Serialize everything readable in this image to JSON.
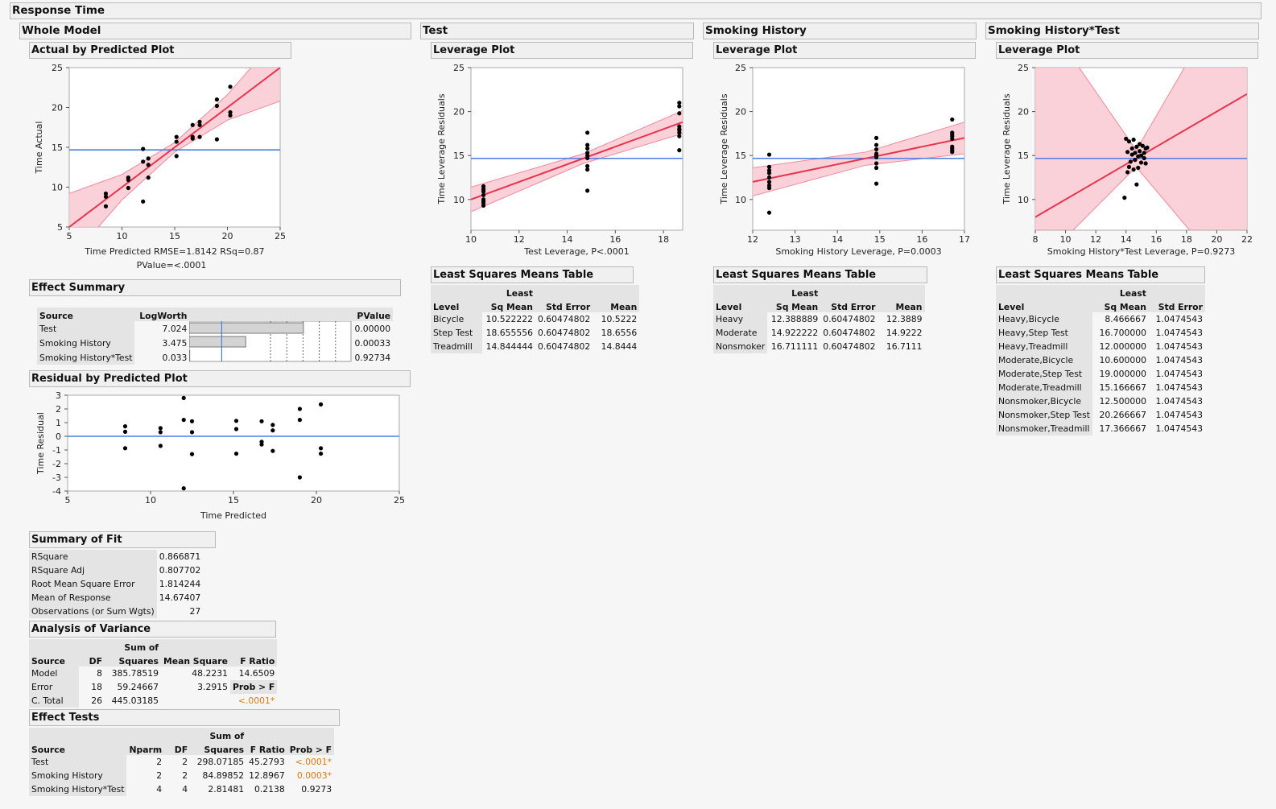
{
  "title": "Response Time",
  "sections": {
    "whole_model": "Whole Model",
    "test": "Test",
    "smoking_history": "Smoking History",
    "interaction": "Smoking History*Test"
  },
  "subheaders": {
    "actual_by_predicted": "Actual by Predicted Plot",
    "leverage_plot": "Leverage Plot",
    "effect_summary": "Effect Summary",
    "residual_by_predicted": "Residual by Predicted Plot",
    "summary_of_fit": "Summary of Fit",
    "analysis_of_variance": "Analysis of Variance",
    "effect_tests": "Effect Tests",
    "lsm_table": "Least Squares Means Table"
  },
  "colors": {
    "fit_line": "#e8344e",
    "band": "#f9c9d1",
    "mean_line": "#4a7fe0",
    "points": "#000000",
    "significant": "#e07a10"
  },
  "chart_data": [
    {
      "id": "actual_by_predicted",
      "type": "scatter",
      "xlabel": "Time Predicted RMSE=1.8142 RSq=0.87",
      "xlabel2": "PValue=<.0001",
      "ylabel": "Time Actual",
      "xlim": [
        5,
        25
      ],
      "ylim": [
        5,
        25
      ],
      "xticks": [
        5,
        10,
        15,
        20,
        25
      ],
      "yticks": [
        5,
        10,
        15,
        20,
        25
      ],
      "mean": 14.674,
      "fit": [
        [
          5,
          5
        ],
        [
          25,
          25
        ]
      ],
      "band": [
        [
          5,
          9.2,
          0.8
        ],
        [
          10,
          11.6,
          8.4
        ],
        [
          15,
          15.6,
          14.4
        ],
        [
          20,
          21.6,
          18.4
        ],
        [
          25,
          29.2,
          20.8
        ]
      ],
      "points": [
        [
          8.47,
          9.2
        ],
        [
          8.47,
          8.8
        ],
        [
          8.47,
          7.6
        ],
        [
          10.6,
          11.2
        ],
        [
          10.6,
          10.9
        ],
        [
          10.6,
          9.9
        ],
        [
          12.0,
          14.8
        ],
        [
          12.0,
          13.2
        ],
        [
          12.0,
          8.2
        ],
        [
          12.5,
          13.6
        ],
        [
          12.5,
          12.8
        ],
        [
          12.5,
          11.2
        ],
        [
          15.17,
          16.3
        ],
        [
          15.17,
          15.7
        ],
        [
          15.17,
          13.9
        ],
        [
          16.7,
          17.8
        ],
        [
          16.7,
          16.3
        ],
        [
          16.7,
          16.1
        ],
        [
          17.37,
          18.2
        ],
        [
          17.37,
          17.8
        ],
        [
          17.37,
          16.3
        ],
        [
          19.0,
          21.0
        ],
        [
          19.0,
          20.2
        ],
        [
          19.0,
          16.0
        ],
        [
          20.27,
          22.6
        ],
        [
          20.27,
          19.4
        ],
        [
          20.27,
          19.0
        ]
      ]
    },
    {
      "id": "residual_by_predicted",
      "type": "scatter",
      "xlabel": "Time Predicted",
      "ylabel": "Time Residual",
      "xlim": [
        5,
        25
      ],
      "ylim": [
        -4,
        3
      ],
      "xticks": [
        5,
        10,
        15,
        20,
        25
      ],
      "yticks": [
        3,
        2,
        1,
        0,
        -1,
        -2,
        -3,
        -4
      ],
      "mean": 0,
      "points": [
        [
          8.47,
          0.73
        ],
        [
          8.47,
          0.33
        ],
        [
          8.47,
          -0.87
        ],
        [
          10.6,
          0.6
        ],
        [
          10.6,
          0.3
        ],
        [
          10.6,
          -0.7
        ],
        [
          12.0,
          2.8
        ],
        [
          12.0,
          1.2
        ],
        [
          12.0,
          -3.8
        ],
        [
          12.5,
          1.1
        ],
        [
          12.5,
          0.3
        ],
        [
          12.5,
          -1.3
        ],
        [
          15.17,
          1.13
        ],
        [
          15.17,
          0.53
        ],
        [
          15.17,
          -1.27
        ],
        [
          16.7,
          1.1
        ],
        [
          16.7,
          -0.4
        ],
        [
          16.7,
          -0.6
        ],
        [
          17.37,
          0.83
        ],
        [
          17.37,
          0.43
        ],
        [
          17.37,
          -1.07
        ],
        [
          19.0,
          2.0
        ],
        [
          19.0,
          1.2
        ],
        [
          19.0,
          -3.0
        ],
        [
          20.27,
          2.33
        ],
        [
          20.27,
          -0.87
        ],
        [
          20.27,
          -1.27
        ]
      ]
    },
    {
      "id": "test_leverage",
      "type": "scatter",
      "xlabel": "Test Leverage, P<.0001",
      "ylabel": "Time Leverage Residuals",
      "xlim": [
        10,
        18.8
      ],
      "ylim": [
        6.5,
        25
      ],
      "xticks": [
        10,
        12,
        14,
        16,
        18
      ],
      "yticks": [
        10,
        15,
        20,
        25
      ],
      "mean": 14.674,
      "fit": [
        [
          10,
          10.0
        ],
        [
          18.8,
          18.8
        ]
      ],
      "band": [
        [
          10,
          11.4,
          8.6
        ],
        [
          14.674,
          15.2,
          14.1
        ],
        [
          18.8,
          20.1,
          17.5
        ]
      ],
      "points": [
        [
          10.52,
          11.5
        ],
        [
          10.52,
          11.2
        ],
        [
          10.52,
          10.9
        ],
        [
          10.52,
          10.5
        ],
        [
          10.52,
          10.0
        ],
        [
          10.52,
          9.6
        ],
        [
          10.52,
          9.3
        ],
        [
          10.52,
          11.0
        ],
        [
          10.52,
          9.8
        ],
        [
          14.84,
          17.6
        ],
        [
          14.84,
          16.2
        ],
        [
          14.84,
          15.8
        ],
        [
          14.84,
          15.3
        ],
        [
          14.84,
          15.0
        ],
        [
          14.84,
          14.7
        ],
        [
          14.84,
          13.8
        ],
        [
          14.84,
          13.4
        ],
        [
          14.84,
          11.0
        ],
        [
          18.66,
          21.0
        ],
        [
          18.66,
          20.6
        ],
        [
          18.66,
          19.8
        ],
        [
          18.66,
          18.3
        ],
        [
          18.66,
          17.9
        ],
        [
          18.66,
          17.6
        ],
        [
          18.66,
          17.2
        ],
        [
          18.66,
          15.6
        ],
        [
          18.66,
          18.0
        ]
      ]
    },
    {
      "id": "smoking_leverage",
      "type": "scatter",
      "xlabel": "Smoking History Leverage, P=0.0003",
      "ylabel": "Time Leverage Residuals",
      "xlim": [
        12,
        17
      ],
      "ylim": [
        6.5,
        25
      ],
      "xticks": [
        12,
        13,
        14,
        15,
        16,
        17
      ],
      "yticks": [
        10,
        15,
        20,
        25
      ],
      "mean": 14.674,
      "fit": [
        [
          12,
          12.0
        ],
        [
          17,
          17.0
        ]
      ],
      "band": [
        [
          12,
          13.6,
          10.4
        ],
        [
          14.674,
          15.4,
          13.9
        ],
        [
          17,
          18.8,
          15.2
        ]
      ],
      "points": [
        [
          12.39,
          15.1
        ],
        [
          12.39,
          13.7
        ],
        [
          12.39,
          13.3
        ],
        [
          12.39,
          12.5
        ],
        [
          12.39,
          12.0
        ],
        [
          12.39,
          11.6
        ],
        [
          12.39,
          11.3
        ],
        [
          12.39,
          8.5
        ],
        [
          12.39,
          13.0
        ],
        [
          14.92,
          17.0
        ],
        [
          14.92,
          16.2
        ],
        [
          14.92,
          15.7
        ],
        [
          14.92,
          15.2
        ],
        [
          14.92,
          14.8
        ],
        [
          14.92,
          14.1
        ],
        [
          14.92,
          13.6
        ],
        [
          14.92,
          11.8
        ],
        [
          14.92,
          15.0
        ],
        [
          16.71,
          19.1
        ],
        [
          16.71,
          17.6
        ],
        [
          16.71,
          17.2
        ],
        [
          16.71,
          16.9
        ],
        [
          16.71,
          16.0
        ],
        [
          16.71,
          15.8
        ],
        [
          16.71,
          15.6
        ],
        [
          16.71,
          15.4
        ],
        [
          16.71,
          17.4
        ]
      ]
    },
    {
      "id": "interaction_leverage",
      "type": "scatter",
      "xlabel": "Smoking History*Test Leverage, P=0.9273",
      "ylabel": "Time Leverage Residuals",
      "xlim": [
        8,
        22
      ],
      "ylim": [
        6.5,
        25
      ],
      "xticks": [
        8,
        10,
        12,
        14,
        16,
        18,
        20,
        22
      ],
      "yticks": [
        10,
        15,
        20,
        25
      ],
      "mean": 14.674,
      "fit": [
        [
          8,
          8.0
        ],
        [
          22,
          22.0
        ]
      ],
      "band": [
        [
          8,
          26.0,
          6.5
        ],
        [
          10.5,
          26.0,
          6.5
        ],
        [
          14.674,
          15.6,
          13.7
        ],
        [
          18.2,
          26.0,
          6.5
        ],
        [
          22,
          26.0,
          6.5
        ]
      ],
      "points": [
        [
          14.0,
          16.9
        ],
        [
          14.2,
          16.6
        ],
        [
          14.5,
          16.8
        ],
        [
          14.7,
          16.0
        ],
        [
          14.9,
          16.3
        ],
        [
          15.1,
          16.1
        ],
        [
          15.3,
          15.8
        ],
        [
          14.1,
          15.4
        ],
        [
          14.4,
          15.1
        ],
        [
          14.6,
          15.3
        ],
        [
          14.8,
          14.9
        ],
        [
          15.0,
          15.0
        ],
        [
          15.2,
          14.7
        ],
        [
          14.3,
          14.3
        ],
        [
          14.6,
          14.5
        ],
        [
          15.0,
          14.2
        ],
        [
          15.3,
          14.1
        ],
        [
          14.2,
          13.7
        ],
        [
          14.5,
          13.4
        ],
        [
          14.8,
          13.6
        ],
        [
          14.1,
          13.1
        ],
        [
          14.7,
          11.7
        ],
        [
          13.9,
          10.2
        ],
        [
          15.4,
          15.9
        ],
        [
          14.9,
          15.5
        ],
        [
          15.2,
          15.3
        ],
        [
          14.4,
          15.8
        ]
      ]
    }
  ],
  "effect_summary": {
    "headers": [
      "Source",
      "LogWorth",
      "PValue"
    ],
    "rows": [
      {
        "source": "Test",
        "logworth": "7.024",
        "logworth_value": 7.024,
        "pvalue": "0.00000"
      },
      {
        "source": "Smoking History",
        "logworth": "3.475",
        "logworth_value": 3.475,
        "pvalue": "0.00033"
      },
      {
        "source": "Smoking History*Test",
        "logworth": "0.033",
        "logworth_value": 0.033,
        "pvalue": "0.92734"
      }
    ],
    "bar_scale_max": 10,
    "bar_marker": 2
  },
  "summary_of_fit": [
    {
      "label": "RSquare",
      "value": "0.866871"
    },
    {
      "label": "RSquare Adj",
      "value": "0.807702"
    },
    {
      "label": "Root Mean Square Error",
      "value": "1.814244"
    },
    {
      "label": "Mean of Response",
      "value": "14.67407"
    },
    {
      "label": "Observations (or Sum Wgts)",
      "value": "27"
    }
  ],
  "anova": {
    "headers": [
      "Source",
      "DF",
      "Sum of",
      "Squares",
      "Mean Square",
      "F Ratio"
    ],
    "rows": [
      {
        "source": "Model",
        "df": "8",
        "ss": "385.78519",
        "ms": "48.2231",
        "f": "14.6509"
      },
      {
        "source": "Error",
        "df": "18",
        "ss": "59.24667",
        "ms": "3.2915",
        "f": "Prob > F"
      },
      {
        "source": "C. Total",
        "df": "26",
        "ss": "445.03185",
        "ms": "",
        "f": "<.0001*"
      }
    ]
  },
  "effect_tests": {
    "headers": [
      "Source",
      "Nparm",
      "DF",
      "Sum of",
      "Squares",
      "F Ratio",
      "Prob > F"
    ],
    "rows": [
      {
        "source": "Test",
        "nparm": "2",
        "df": "2",
        "ss": "298.07185",
        "f": "45.2793",
        "p": "<.0001*"
      },
      {
        "source": "Smoking History",
        "nparm": "2",
        "df": "2",
        "ss": "84.89852",
        "f": "12.8967",
        "p": "0.0003*"
      },
      {
        "source": "Smoking History*Test",
        "nparm": "4",
        "df": "4",
        "ss": "2.81481",
        "f": "0.2138",
        "p": "0.9273"
      }
    ]
  },
  "lsm_test": {
    "headers": [
      "Level",
      "Least",
      "Sq Mean",
      "Std Error",
      "Mean"
    ],
    "rows": [
      {
        "level": "Bicycle",
        "lsm": "10.522222",
        "se": "0.60474802",
        "mean": "10.5222"
      },
      {
        "level": "Step Test",
        "lsm": "18.655556",
        "se": "0.60474802",
        "mean": "18.6556"
      },
      {
        "level": "Treadmill",
        "lsm": "14.844444",
        "se": "0.60474802",
        "mean": "14.8444"
      }
    ]
  },
  "lsm_smoking": {
    "headers": [
      "Level",
      "Least",
      "Sq Mean",
      "Std Error",
      "Mean"
    ],
    "rows": [
      {
        "level": "Heavy",
        "lsm": "12.388889",
        "se": "0.60474802",
        "mean": "12.3889"
      },
      {
        "level": "Moderate",
        "lsm": "14.922222",
        "se": "0.60474802",
        "mean": "14.9222"
      },
      {
        "level": "Nonsmoker",
        "lsm": "16.711111",
        "se": "0.60474802",
        "mean": "16.7111"
      }
    ]
  },
  "lsm_interaction": {
    "headers": [
      "Level",
      "Least",
      "Sq Mean",
      "Std Error"
    ],
    "rows": [
      {
        "level": "Heavy,Bicycle",
        "lsm": "8.466667",
        "se": "1.0474543"
      },
      {
        "level": "Heavy,Step Test",
        "lsm": "16.700000",
        "se": "1.0474543"
      },
      {
        "level": "Heavy,Treadmill",
        "lsm": "12.000000",
        "se": "1.0474543"
      },
      {
        "level": "Moderate,Bicycle",
        "lsm": "10.600000",
        "se": "1.0474543"
      },
      {
        "level": "Moderate,Step Test",
        "lsm": "19.000000",
        "se": "1.0474543"
      },
      {
        "level": "Moderate,Treadmill",
        "lsm": "15.166667",
        "se": "1.0474543"
      },
      {
        "level": "Nonsmoker,Bicycle",
        "lsm": "12.500000",
        "se": "1.0474543"
      },
      {
        "level": "Nonsmoker,Step Test",
        "lsm": "20.266667",
        "se": "1.0474543"
      },
      {
        "level": "Nonsmoker,Treadmill",
        "lsm": "17.366667",
        "se": "1.0474543"
      }
    ]
  }
}
